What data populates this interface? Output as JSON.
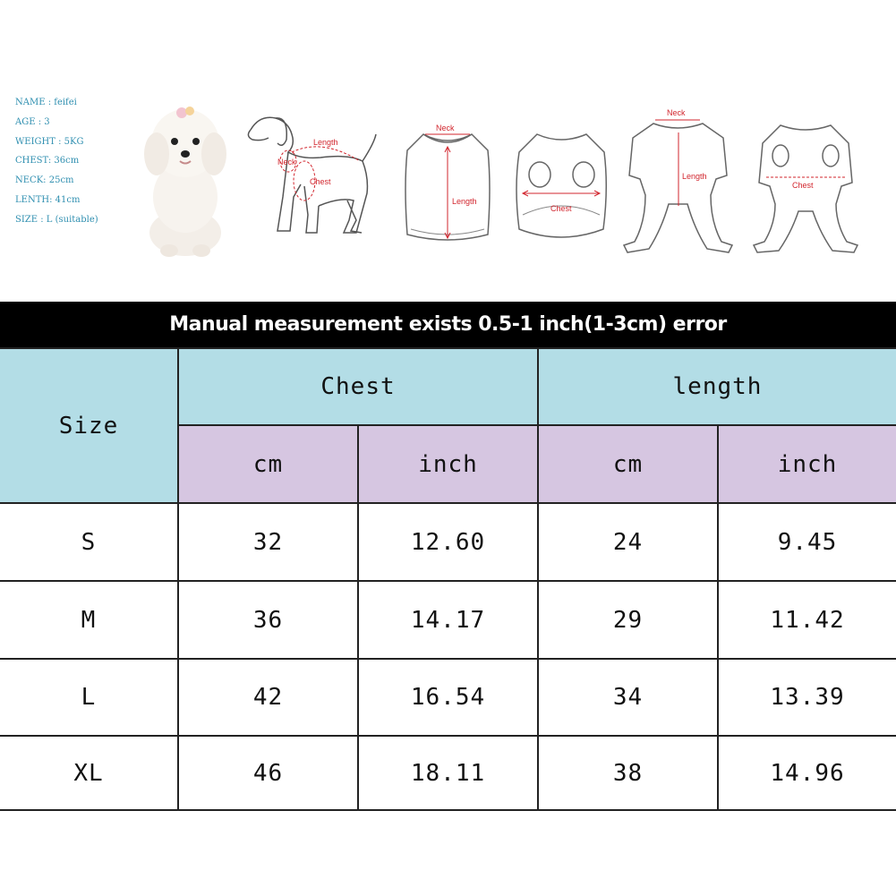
{
  "pet_info": [
    "NAME : feifei",
    "AGE : 3",
    "WEIGHT : 5KG",
    "CHEST: 36cm",
    "NECK: 25cm",
    "LENTH: 41cm",
    "SIZE : L (suitable)"
  ],
  "diagram_labels": {
    "dog": {
      "length": "Length",
      "neck": "Neck",
      "chest": "Chest"
    },
    "vest_front": {
      "neck": "Neck",
      "length": "Length"
    },
    "vest_back": {
      "chest": "Chest"
    },
    "jumpsuit_front": {
      "neck": "Neck",
      "length": "Length"
    },
    "jumpsuit_back": {
      "chest": "Chest"
    }
  },
  "banner": "Manual measurement exists 0.5-1 inch(1-3cm) error",
  "table": {
    "size_header": "Size",
    "chest_header": "Chest",
    "length_header": "length",
    "unit_cm": "cm",
    "unit_inch": "inch",
    "rows": [
      {
        "size": "S",
        "chest_cm": "32",
        "chest_inch": "12.60",
        "length_cm": "24",
        "length_inch": "9.45"
      },
      {
        "size": "M",
        "chest_cm": "36",
        "chest_inch": "14.17",
        "length_cm": "29",
        "length_inch": "11.42"
      },
      {
        "size": "L",
        "chest_cm": "42",
        "chest_inch": "16.54",
        "length_cm": "34",
        "length_inch": "13.39"
      },
      {
        "size": "XL",
        "chest_cm": "46",
        "chest_inch": "18.11",
        "length_cm": "38",
        "length_inch": "14.96"
      }
    ]
  },
  "colors": {
    "header_blue": "#b3dde6",
    "header_purple": "#d6c6e1",
    "banner_bg": "#000000",
    "info_text": "#2f8fb0",
    "measure_red": "#d2262e"
  }
}
